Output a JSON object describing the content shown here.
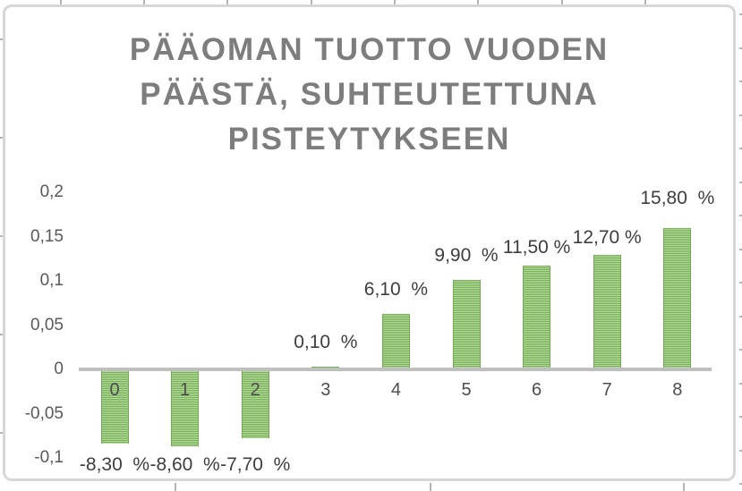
{
  "chart_data": {
    "type": "bar",
    "title": "PÄÄOMAN TUOTTO VUODEN PÄÄSTÄ, SUHTEUTETTUNA PISTEYTYKSEEN",
    "title_lines": [
      "PÄÄOMAN TUOTTO VUODEN",
      "PÄÄSTÄ, SUHTEUTETTUNA",
      "PISTEYTYKSEEN"
    ],
    "categories": [
      "0",
      "1",
      "2",
      "3",
      "4",
      "5",
      "6",
      "7",
      "8"
    ],
    "values": [
      -0.083,
      -0.086,
      -0.077,
      0.001,
      0.061,
      0.099,
      0.115,
      0.127,
      0.158
    ],
    "data_labels": [
      "-8,30  %",
      "-8,60  %",
      "-7,70  %",
      "0,10  %",
      "6,10  %",
      "9,90  %",
      "11,50 %",
      "12,70 %",
      "15,80  %"
    ],
    "y_tick_labels": [
      "0,2",
      "0,15",
      "0,1",
      "0,05",
      "0",
      "-0,05",
      "-0,1"
    ],
    "y_tick_values": [
      0.2,
      0.15,
      0.1,
      0.05,
      0,
      -0.05,
      -0.1
    ],
    "ylim": [
      -0.1,
      0.2
    ],
    "xlabel": "",
    "ylabel": "",
    "grid": false,
    "legend": false,
    "number_format": "decimal comma (fi-FI)"
  },
  "colors": {
    "title": "#7d7d7d",
    "axis_labels": "#595959",
    "category_labels": "#4d4d4d",
    "data_labels": "#3e3e3e",
    "axis_line": "#bfbfbf",
    "bar_stripe_dark": "#79b158",
    "bar_stripe_light": "#b2d89b",
    "bar_border": "#74a953",
    "chart_border": "#d7d7d7",
    "sheet_gridline": "#b5b5b5"
  }
}
